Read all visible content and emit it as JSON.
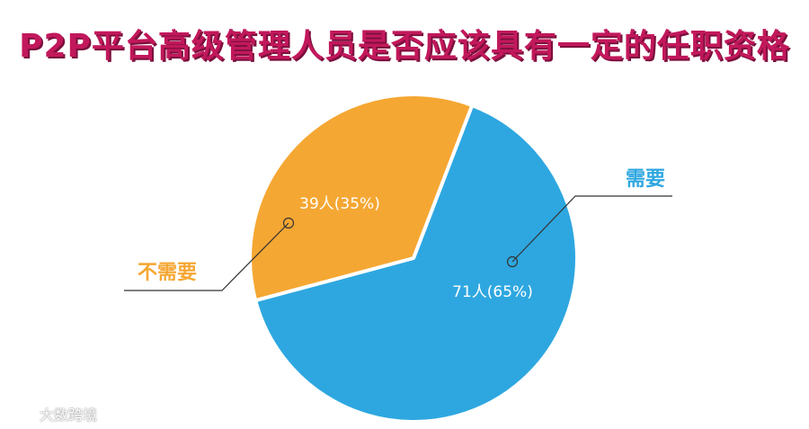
{
  "chart_data": {
    "type": "pie",
    "title": "P2P平台高级管理人员是否应该具有一定的任职资格",
    "slices": [
      {
        "category": "需要",
        "value": 71,
        "percent": 65,
        "label": "71人(65%)",
        "color": "#2ea7e0"
      },
      {
        "category": "不需要",
        "value": 39,
        "percent": 35,
        "label": "39人(35%)",
        "color": "#f5a733"
      }
    ],
    "category_colors": {
      "需要": "#2ea7e0",
      "不需要": "#f5a733"
    }
  },
  "watermark": {
    "text": "大数跨境"
  }
}
